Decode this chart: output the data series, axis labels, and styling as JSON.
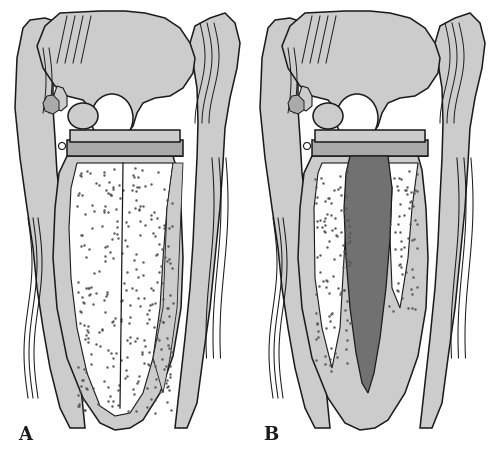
{
  "label_A": "A",
  "label_B": "B",
  "label_fontsize": 13,
  "background_color": "#ffffff",
  "line_color": "#1a1a1a",
  "gray_light": "#cccccc",
  "gray_medium": "#aaaaaa",
  "gray_dark": "#717171",
  "gray_bone_fill": "#e5e5e5",
  "white": "#ffffff",
  "figsize": [
    5.0,
    4.5
  ],
  "dpi": 100
}
